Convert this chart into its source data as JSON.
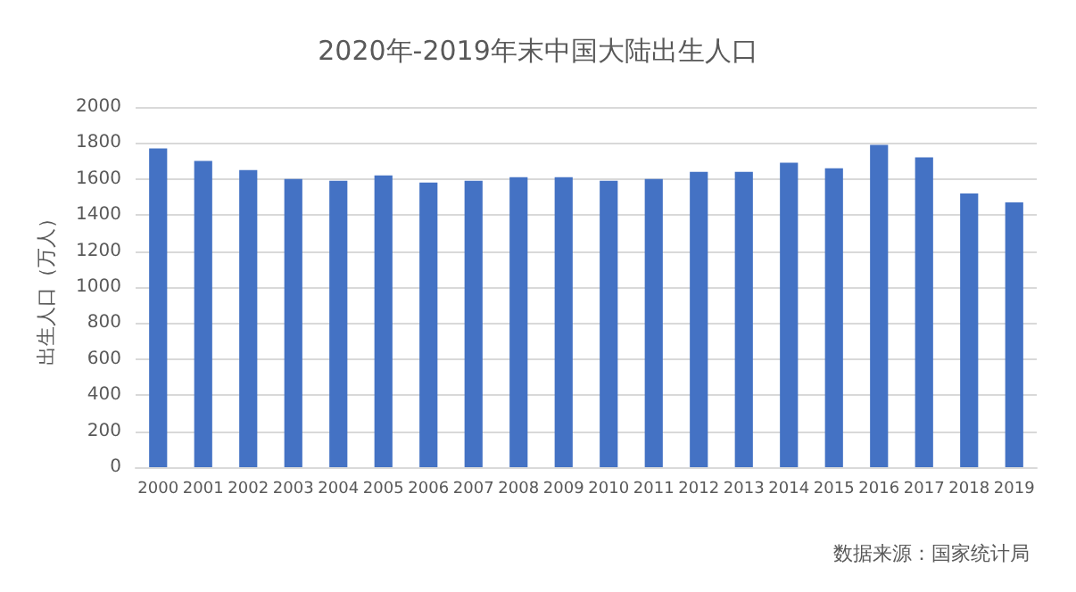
{
  "chart_data": {
    "type": "bar",
    "title": "2020年-2019年末中国大陆出生人口",
    "ylabel": "出生人口（万人）",
    "categories": [
      "2000",
      "2001",
      "2002",
      "2003",
      "2004",
      "2005",
      "2006",
      "2007",
      "2008",
      "2009",
      "2010",
      "2011",
      "2012",
      "2013",
      "2014",
      "2015",
      "2016",
      "2017",
      "2018",
      "2019"
    ],
    "values": [
      1770,
      1700,
      1650,
      1600,
      1590,
      1620,
      1580,
      1590,
      1610,
      1610,
      1590,
      1600,
      1640,
      1640,
      1690,
      1660,
      1790,
      1720,
      1520,
      1470
    ],
    "color": "#4472c4",
    "ylim": [
      0,
      2000
    ],
    "yticks": [
      0,
      200,
      400,
      600,
      800,
      1000,
      1200,
      1400,
      1600,
      1800,
      2000
    ],
    "grid": "y",
    "annotations": [
      "数据来源：国家统计局"
    ]
  }
}
